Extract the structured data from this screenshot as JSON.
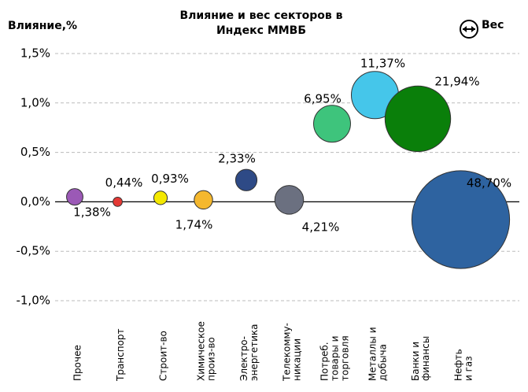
{
  "chart_data": {
    "type": "bubble",
    "title": [
      "Влияние и вес секторов в",
      "Индекс ММВБ"
    ],
    "y_label": "Влияние,%",
    "size_label": "Вес",
    "categories": [
      [
        "Прочее"
      ],
      [
        "Транспорт"
      ],
      [
        "Строит-во"
      ],
      [
        "Химическое",
        "произ-во"
      ],
      [
        "Электро-",
        "энергетика"
      ],
      [
        "Телекомму-",
        "никации"
      ],
      [
        "Потреб.",
        "товары и",
        "торговля"
      ],
      [
        "Металлы и",
        "добыча"
      ],
      [
        "Банки и",
        "финансы"
      ],
      [
        "Нефть",
        "и газ"
      ]
    ],
    "values": [
      0.05,
      0.0,
      0.04,
      0.02,
      0.22,
      0.02,
      0.79,
      1.08,
      0.84,
      -0.18
    ],
    "sizes": [
      1.38,
      0.44,
      0.93,
      1.74,
      2.33,
      4.21,
      6.95,
      11.37,
      21.94,
      48.7
    ],
    "value_labels": [
      "1,38%",
      "0,44%",
      "0,93%",
      "1,74%",
      "2,33%",
      "4,21%",
      "6,95%",
      "11,37%",
      "21,94%",
      "48,70%"
    ],
    "colors": [
      "#9b59b6",
      "#e53935",
      "#f4e800",
      "#f5b82e",
      "#2e4a86",
      "#6b7080",
      "#3ec47c",
      "#45c6ea",
      "#0a7f0a",
      "#2e63a0"
    ],
    "ylim": [
      -1.0,
      1.5
    ],
    "yticks": [
      {
        "value": -1.0,
        "label": "-1,0%"
      },
      {
        "value": -0.5,
        "label": "-0,5%"
      },
      {
        "value": 0.0,
        "label": "0,0%"
      },
      {
        "value": 0.5,
        "label": "0,5%"
      },
      {
        "value": 1.0,
        "label": "1,0%"
      },
      {
        "value": 1.5,
        "label": "1,5%"
      }
    ],
    "grid": true
  }
}
